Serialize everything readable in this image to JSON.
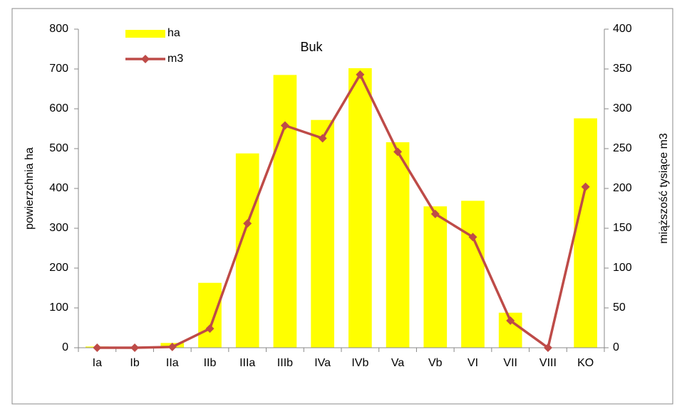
{
  "chart_data": {
    "type": "bar_line",
    "title": "Buk",
    "categories": [
      "Ia",
      "Ib",
      "IIa",
      "IIb",
      "IIIa",
      "IIIb",
      "IVa",
      "IVb",
      "Va",
      "Vb",
      "VI",
      "VII",
      "VIII",
      "KO"
    ],
    "series": [
      {
        "name": "ha",
        "type": "bar",
        "color": "#ffff00",
        "values": [
          3,
          0,
          12,
          163,
          488,
          685,
          572,
          702,
          516,
          355,
          369,
          88,
          0,
          576
        ]
      },
      {
        "name": "m3",
        "type": "line",
        "axis": "y2",
        "color": "#be4b48",
        "values": [
          0,
          0,
          1,
          24,
          156,
          279,
          263,
          343,
          246,
          168,
          139,
          34,
          0,
          202
        ]
      }
    ],
    "ylabel": "powierzchnia ha",
    "y2label": "miąższość tysiące m3",
    "ylim": [
      0,
      800
    ],
    "yticks": [
      0,
      100,
      200,
      300,
      400,
      500,
      600,
      700,
      800
    ],
    "y2lim": [
      0,
      400
    ],
    "y2ticks": [
      0,
      50,
      100,
      150,
      200,
      250,
      300,
      350,
      400
    ],
    "grid": false,
    "legend": "top-left"
  }
}
